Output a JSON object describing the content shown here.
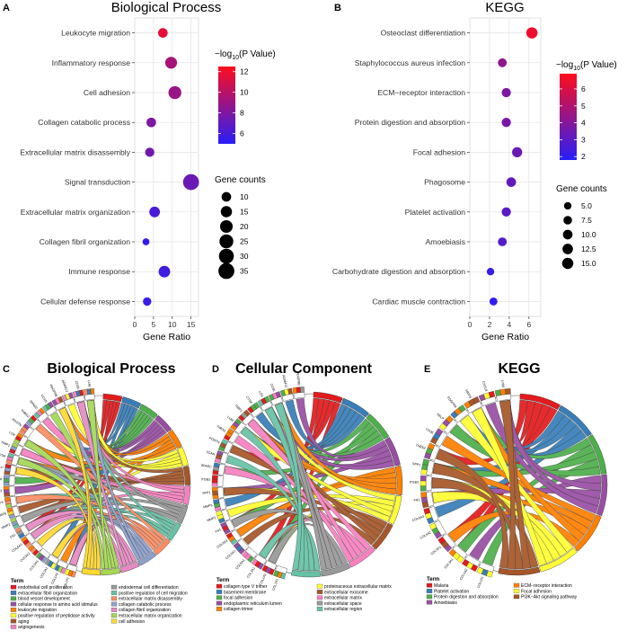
{
  "chart_data": [
    {
      "panel": "A",
      "type": "scatter",
      "title": "Biological Process",
      "xlabel": "Gene Ratio",
      "xticks": [
        "0",
        "5",
        "10",
        "15"
      ],
      "xlim": [
        0,
        17
      ],
      "categories": [
        "Leukocyte migration",
        "Inflammatory response",
        "Cell adhesion",
        "Collagen catabolic process",
        "Extracellular matrix disassembly",
        "Signal transduction",
        "Extracellular matrix organization",
        "Collagen fibril organization",
        "Immune response",
        "Cellular defense response"
      ],
      "gene_ratio": [
        7.5,
        9.7,
        10.7,
        4.4,
        4.0,
        15.0,
        5.3,
        3.0,
        7.9,
        3.3
      ],
      "neg_log10_p": [
        11.6,
        9.4,
        8.9,
        8.0,
        7.6,
        7.3,
        6.1,
        5.4,
        5.8,
        5.6
      ],
      "gene_counts": [
        10,
        17,
        21,
        10,
        9,
        35,
        13,
        4,
        16,
        7
      ],
      "color_legend_title_pre": "−log",
      "color_legend_title_sub": "10",
      "color_legend_title_post": "(P Value)",
      "color_ticks": [
        "12",
        "10",
        "8",
        "6"
      ],
      "color_range": [
        5,
        12.5
      ],
      "size_legend_title": "Gene counts",
      "size_ticks": [
        "10",
        "15",
        "20",
        "25",
        "30",
        "35"
      ],
      "size_values": [
        10,
        15,
        20,
        25,
        30,
        35
      ]
    },
    {
      "panel": "B",
      "type": "scatter",
      "title": "KEGG",
      "xlabel": "Gene Ratio",
      "xticks": [
        "0",
        "2",
        "4",
        "6"
      ],
      "xlim": [
        0,
        7.2
      ],
      "categories": [
        "Osteoclast differentiation",
        "Staphylococcus aureus infection",
        "ECM−receptor interaction",
        "Protein digestion and absorption",
        "Focal adhesion",
        "Phagosome",
        "Platelet activation",
        "Amoebiasis",
        "Carbohydrate digestion and absorption",
        "Cardiac muscle contraction"
      ],
      "gene_ratio": [
        6.3,
        3.3,
        3.7,
        3.7,
        4.8,
        4.2,
        3.7,
        3.3,
        2.1,
        2.4
      ],
      "neg_log10_p": [
        6.5,
        4.3,
        3.8,
        3.7,
        3.4,
        3.2,
        3.0,
        2.9,
        2.1,
        2.0
      ],
      "gene_counts": [
        15,
        8,
        9,
        9,
        11.5,
        10,
        9,
        8,
        5,
        6
      ],
      "color_legend_title_pre": "−log",
      "color_legend_title_sub": "10",
      "color_legend_title_post": "(P Value)",
      "color_ticks": [
        "6",
        "5",
        "4",
        "3",
        "2"
      ],
      "color_range": [
        1.8,
        6.9
      ],
      "size_legend_title": "Gene counts",
      "size_ticks": [
        "5.0",
        "7.5",
        "10.0",
        "12.5",
        "15.0"
      ],
      "size_values": [
        5,
        7.5,
        10,
        12.5,
        15
      ]
    },
    {
      "panel": "C",
      "type": "chord",
      "title": "Biological Process",
      "legend_title": "Term",
      "terms": [
        {
          "label": "endothelial cell proliferation",
          "color": "#e41a1c"
        },
        {
          "label": "extracellular fibril organization",
          "color": "#377eb8"
        },
        {
          "label": "blood vessel development",
          "color": "#4daf4a"
        },
        {
          "label": "cellular response to amino acid stimulus",
          "color": "#984ea3"
        },
        {
          "label": "leukocyte migration",
          "color": "#ff7f00"
        },
        {
          "label": "positive regulation of peptidase activity",
          "color": "#ffff33"
        },
        {
          "label": "aging",
          "color": "#a65628"
        },
        {
          "label": "angiogenesis",
          "color": "#f781bf"
        },
        {
          "label": "endodermal cell differentiation",
          "color": "#999999"
        },
        {
          "label": "positive regulation of cell migration",
          "color": "#66c2a5"
        },
        {
          "label": "extracellular matrix disassembly",
          "color": "#fc8d62"
        },
        {
          "label": "collagen catabolic process",
          "color": "#8da0cb"
        },
        {
          "label": "collagen fibril organization",
          "color": "#e78ac3"
        },
        {
          "label": "extracellular matrix organization",
          "color": "#a6d854"
        },
        {
          "label": "cell adhesion",
          "color": "#ffd92f"
        }
      ],
      "genes": [
        "COL1A1",
        "COL1A2",
        "COL3A1",
        "COL5A1",
        "COL5A2",
        "COL6A3",
        "FN1",
        "MMP2",
        "MMP9",
        "SPP1",
        "ITGB3",
        "CXCL8",
        "SELP",
        "CTSK",
        "TIMP1",
        "LOX",
        "POSTN",
        "THBS2",
        "SPARC",
        "VCAN",
        "PDGFRB",
        "ADAM12",
        "CD36",
        "LUM"
      ]
    },
    {
      "panel": "D",
      "type": "chord",
      "title": "Cellular Component",
      "legend_title": "Term",
      "terms": [
        {
          "label": "collagen type V trimer",
          "color": "#e41a1c"
        },
        {
          "label": "basement membrane",
          "color": "#377eb8"
        },
        {
          "label": "focal adhesion",
          "color": "#4daf4a"
        },
        {
          "label": "endoplasmic reticulum lumen",
          "color": "#984ea3"
        },
        {
          "label": "collagen trimer",
          "color": "#ff7f00"
        },
        {
          "label": "proteinaceous extracellular matrix",
          "color": "#ffff33"
        },
        {
          "label": "extracellular exosome",
          "color": "#a65628"
        },
        {
          "label": "extracellular matrix",
          "color": "#f781bf"
        },
        {
          "label": "extracellular space",
          "color": "#999999"
        },
        {
          "label": "extracellular region",
          "color": "#66c2a5"
        }
      ],
      "genes": [
        "COL1A1",
        "COL1A2",
        "COL3A1",
        "COL5A1",
        "COL5A2",
        "COL6A3",
        "FN1",
        "MMP2",
        "MMP9",
        "SPP1",
        "ITGB3",
        "SPARC",
        "VCAN",
        "POSTN",
        "THBS2",
        "LUM",
        "TIMP1",
        "CTSK",
        "LOX",
        "CD36",
        "ADAM12",
        "PDGFRB"
      ]
    },
    {
      "panel": "E",
      "type": "chord",
      "title": "KEGG",
      "legend_title": "Term",
      "terms": [
        {
          "label": "Malaria",
          "color": "#e41a1c"
        },
        {
          "label": "Platelet activation",
          "color": "#377eb8"
        },
        {
          "label": "Protein digestion and absorption",
          "color": "#4daf4a"
        },
        {
          "label": "Amoebiasis",
          "color": "#984ea3"
        },
        {
          "label": "ECM−receptor interaction",
          "color": "#ff7f00"
        },
        {
          "label": "Focal adhesion",
          "color": "#ffff33"
        },
        {
          "label": "PI3K−Akt signaling pathway",
          "color": "#a65628"
        }
      ],
      "genes": [
        "COL1A1",
        "COL1A2",
        "COL3A1",
        "COL5A1",
        "COL5A2",
        "COL6A3",
        "FN1",
        "ITGB3",
        "SPP1",
        "THBS2",
        "CD36",
        "SELP",
        "PDGFRB",
        "MMP9",
        "CXCL8",
        "LY96"
      ]
    }
  ]
}
